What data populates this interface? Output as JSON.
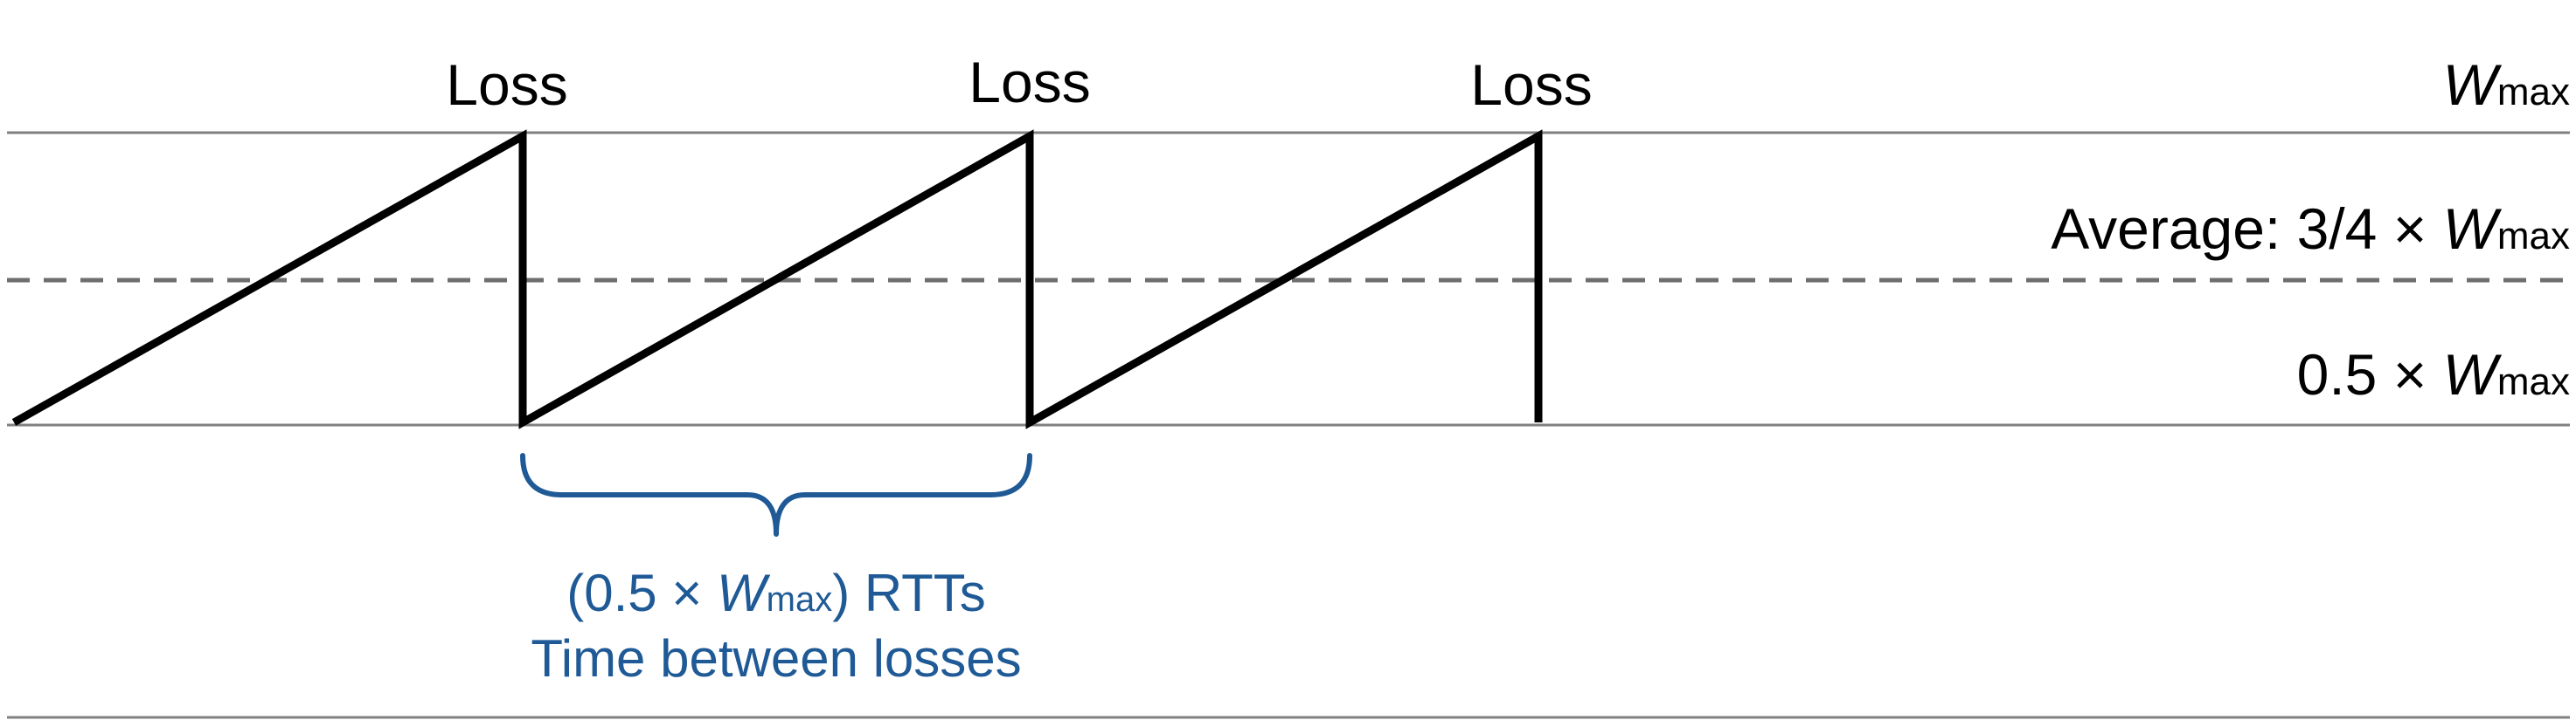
{
  "labels": {
    "loss": [
      "Loss",
      "Loss",
      "Loss"
    ],
    "wmax": {
      "w": "W",
      "sub": "max"
    },
    "average": {
      "prefix": "Average: 3/4 × ",
      "w": "W",
      "sub": "max"
    },
    "half": {
      "prefix": "0.5 × ",
      "w": "W",
      "sub": "max"
    }
  },
  "brace": {
    "line1": {
      "open": "(0.5 × ",
      "w": "W",
      "sub": "max",
      "close": ") RTTs"
    },
    "line2": "Time between losses"
  },
  "colors": {
    "sawtooth": "#000000",
    "reference_line": "#808080",
    "average_line": "#6e6e6e",
    "brace": "#1f5a96"
  }
}
